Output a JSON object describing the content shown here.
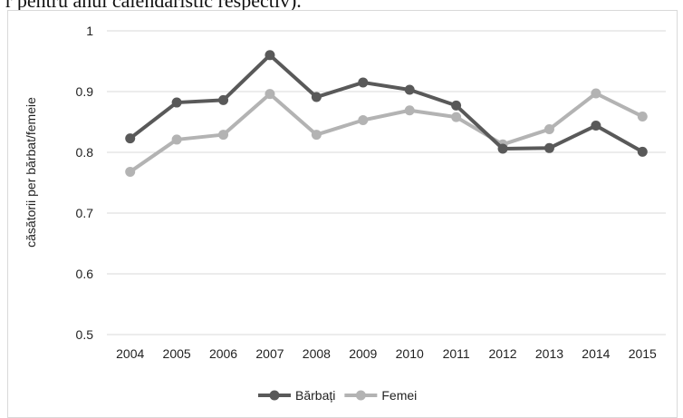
{
  "header": {
    "partial_text": "r pentru anul calendaristic respectiv)."
  },
  "chart_data": {
    "type": "line",
    "x": [
      "2004",
      "2005",
      "2006",
      "2007",
      "2008",
      "2009",
      "2010",
      "2011",
      "2012",
      "2013",
      "2014",
      "2015"
    ],
    "series": [
      {
        "name": "Bărbați",
        "color": "#595959",
        "values": [
          0.823,
          0.882,
          0.886,
          0.96,
          0.891,
          0.915,
          0.903,
          0.877,
          0.806,
          0.807,
          0.844,
          0.801
        ]
      },
      {
        "name": "Femei",
        "color": "#b3b3b3",
        "values": [
          0.768,
          0.821,
          0.829,
          0.896,
          0.829,
          0.853,
          0.869,
          0.858,
          0.813,
          0.838,
          0.897,
          0.859
        ]
      }
    ],
    "title": "",
    "xlabel": "",
    "ylabel": "căsătorii per bărbat/femeie",
    "ylim": [
      0.5,
      1.0
    ],
    "yticks": [
      "0.5",
      "0.6",
      "0.7",
      "0.8",
      "0.9",
      "1"
    ],
    "grid": "horizontal",
    "legend": "bottom"
  }
}
